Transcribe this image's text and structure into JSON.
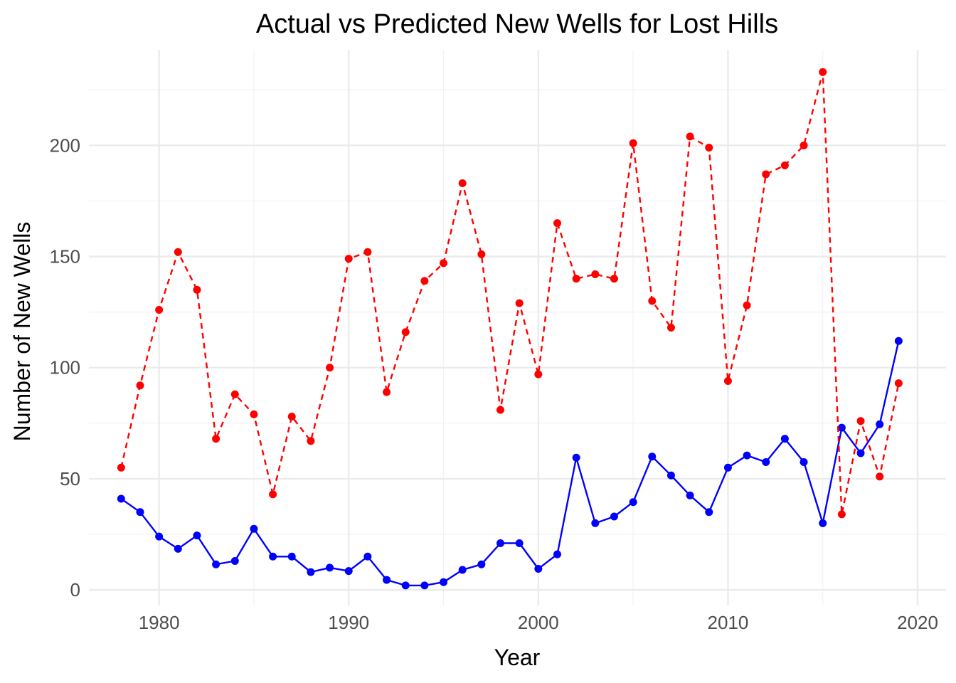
{
  "chart_data": {
    "type": "line",
    "title": "Actual vs Predicted New Wells for Lost Hills",
    "xlabel": "Year",
    "ylabel": "Number of New Wells",
    "xlim": [
      1976.3,
      2021.5
    ],
    "ylim": [
      -7,
      243
    ],
    "grid": true,
    "legend": "none",
    "x_ticks": [
      1980,
      1990,
      2000,
      2010,
      2020
    ],
    "y_ticks": [
      0,
      50,
      100,
      150,
      200
    ],
    "x": [
      1978,
      1979,
      1980,
      1981,
      1982,
      1983,
      1984,
      1985,
      1986,
      1987,
      1988,
      1989,
      1990,
      1991,
      1992,
      1993,
      1994,
      1995,
      1996,
      1997,
      1998,
      1999,
      2000,
      2001,
      2002,
      2003,
      2004,
      2005,
      2006,
      2007,
      2008,
      2009,
      2010,
      2011,
      2012,
      2013,
      2014,
      2015,
      2016,
      2017,
      2018,
      2019
    ],
    "series": [
      {
        "color": "#0000ff",
        "style": "solid",
        "values": [
          41,
          35,
          24,
          18.5,
          24.5,
          11.5,
          13,
          27.5,
          15,
          15,
          8,
          10,
          8.5,
          15,
          4.5,
          2,
          2,
          3.5,
          9,
          11.5,
          21,
          21,
          9.5,
          16,
          59.5,
          30,
          33,
          39.5,
          60,
          51.5,
          42.5,
          35,
          55,
          60.5,
          57.5,
          68,
          57.5,
          30,
          73,
          61.5,
          74.5,
          112
        ]
      },
      {
        "color": "#ff0000",
        "style": "dashed",
        "values": [
          55,
          92,
          126,
          152,
          135,
          68,
          88,
          79,
          43,
          78,
          67,
          100,
          149,
          152,
          89,
          116,
          139,
          147,
          183,
          151,
          81,
          129,
          97,
          165,
          140,
          142,
          140,
          201,
          130,
          118,
          204,
          199,
          94,
          128,
          187,
          191,
          200,
          233,
          34,
          76,
          51,
          93
        ]
      }
    ]
  }
}
